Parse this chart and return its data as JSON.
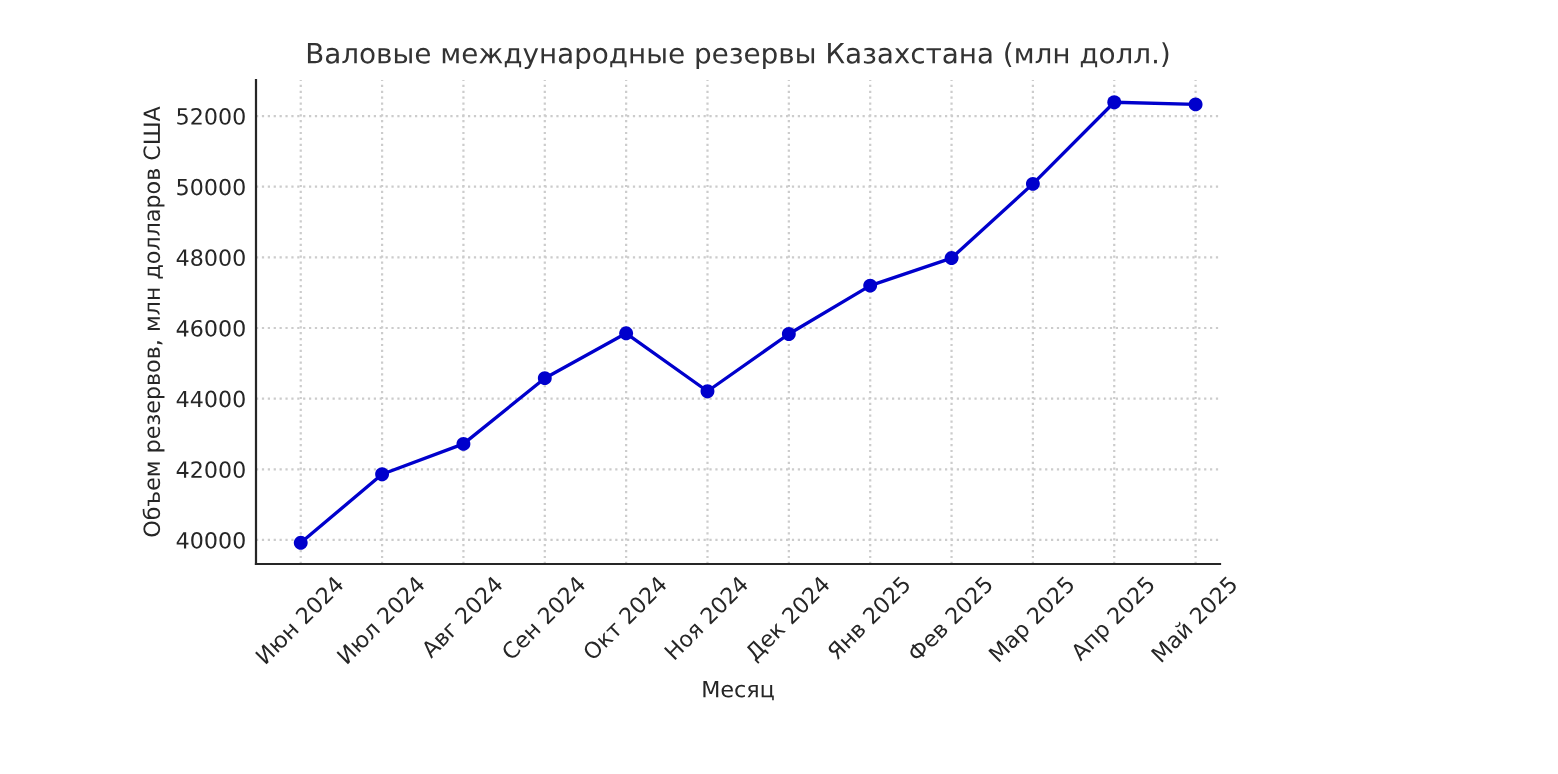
{
  "chart_data": {
    "type": "line",
    "title": "Валовые международные резервы Казахстана (млн долл.)",
    "xlabel": "Месяц",
    "ylabel": "Объем резервов, млн долларов США",
    "categories": [
      "Июн 2024",
      "Июл 2024",
      "Авг 2024",
      "Сен 2024",
      "Окт 2024",
      "Ноя 2024",
      "Дек 2024",
      "Янв 2025",
      "Фев 2025",
      "Мар 2025",
      "Апр 2025",
      "Май 2025"
    ],
    "series": [
      {
        "color": "#0000cc",
        "values": [
          39920,
          41860,
          42720,
          44580,
          45850,
          44210,
          45830,
          47200,
          47980,
          50080,
          52390,
          52330
        ]
      }
    ],
    "ylim": [
      39320,
      53020
    ],
    "yticks": [
      40000,
      42000,
      44000,
      46000,
      48000,
      50000,
      52000
    ],
    "grid": true,
    "marker": "circle",
    "line_style": "solid"
  }
}
